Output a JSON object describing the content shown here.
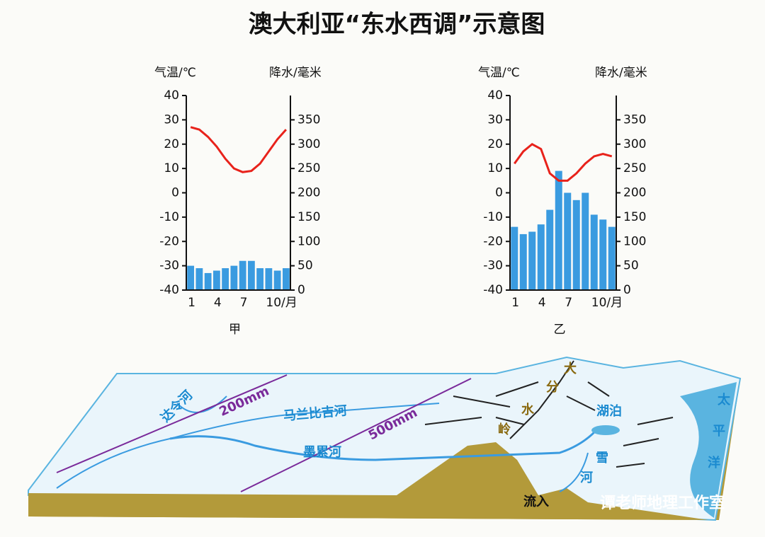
{
  "title": "澳大利亚“东水西调”示意图",
  "chart_data": [
    {
      "type": "combo",
      "caption": "甲",
      "ylabel": "气温/℃",
      "y2label": "降水/毫米",
      "categories": [
        "1",
        null,
        null,
        "4",
        null,
        null,
        "7",
        null,
        null,
        "10/月",
        null,
        null
      ],
      "ylim": [
        -40,
        40
      ],
      "yticks": [
        -40,
        -30,
        -20,
        -10,
        0,
        10,
        20,
        30,
        40
      ],
      "y2lim": [
        0,
        400
      ],
      "y2ticks": [
        0,
        50,
        100,
        150,
        200,
        250,
        300,
        350
      ],
      "series": [
        {
          "color": "#e8221b",
          "values": [
            27,
            26,
            23,
            19,
            14,
            10,
            8.5,
            9,
            12,
            17,
            22,
            26
          ]
        },
        {
          "color": "#3a9be0",
          "axis": "y2",
          "values": [
            50,
            45,
            35,
            40,
            45,
            50,
            60,
            60,
            45,
            45,
            40,
            45
          ]
        }
      ]
    },
    {
      "type": "combo",
      "caption": "乙",
      "ylabel": "气温/℃",
      "y2label": "降水/毫米",
      "categories": [
        "1",
        null,
        null,
        "4",
        null,
        null,
        "7",
        null,
        null,
        "10/月",
        null,
        null
      ],
      "ylim": [
        -40,
        40
      ],
      "yticks": [
        -40,
        -30,
        -20,
        -10,
        0,
        10,
        20,
        30,
        40
      ],
      "y2lim": [
        0,
        400
      ],
      "y2ticks": [
        0,
        50,
        100,
        150,
        200,
        250,
        300,
        350
      ],
      "series": [
        {
          "color": "#e8221b",
          "values": [
            12,
            17,
            20,
            18,
            8,
            5,
            5,
            8,
            12,
            15,
            16,
            15
          ]
        },
        {
          "color": "#3a9be0",
          "axis": "y2",
          "values": [
            130,
            115,
            120,
            135,
            165,
            245,
            200,
            185,
            200,
            155,
            145,
            130
          ]
        }
      ]
    }
  ],
  "diagram": {
    "labels": [
      "达令河",
      "200mm",
      "马兰比吉河",
      "500mm",
      "墨累河",
      "大",
      "分",
      "水",
      "岭",
      "湖泊",
      "雪",
      "河",
      "太",
      "平",
      "洋",
      "流入",
      "谭老师地理工作室"
    ]
  }
}
